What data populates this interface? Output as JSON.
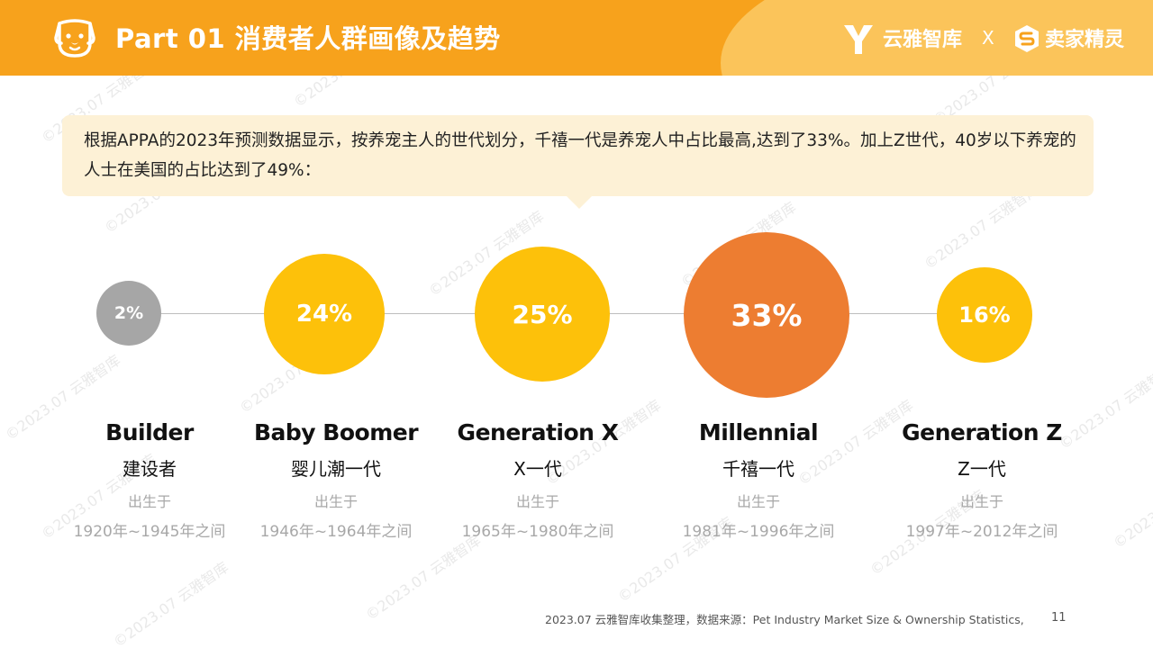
{
  "header": {
    "title": "Part 01 消费者人群画像及趋势",
    "brand_1": "云雅智库",
    "separator": "X",
    "brand_2": "卖家精灵",
    "colors": {
      "bar": "#f7a21c",
      "wave": "#fbc45a"
    }
  },
  "watermark": "©2023.07 云雅智库",
  "callout": {
    "text": "根据APPA的2023年预测数据显示，按养宠主人的世代划分，千禧一代是养宠人中占比最高,达到了33%。加上Z世代，40岁以下养宠的人士在美国的占比达到了49%："
  },
  "generations": [
    {
      "name": "Builder",
      "name_cn": "建设者",
      "born_label": "出生于",
      "range": "1920年~1945年之间",
      "share": "2%",
      "color": "#a6a6a6"
    },
    {
      "name": "Baby Boomer",
      "name_cn": "婴儿潮一代",
      "born_label": "出生于",
      "range": "1946年~1964年之间",
      "share": "24%",
      "color": "#fdc10a"
    },
    {
      "name": "Generation X",
      "name_cn": "X一代",
      "born_label": "出生于",
      "range": "1965年~1980年之间",
      "share": "25%",
      "color": "#fdc10a"
    },
    {
      "name": "Millennial",
      "name_cn": "千禧一代",
      "born_label": "出生于",
      "range": "1981年~1996年之间",
      "share": "33%",
      "color": "#ed7d31"
    },
    {
      "name": "Generation Z",
      "name_cn": "Z一代",
      "born_label": "出生于",
      "range": "1997年~2012年之间",
      "share": "16%",
      "color": "#fdc10a"
    }
  ],
  "footer": {
    "source": "2023.07 云雅智库收集整理，数据来源：Pet Industry Market Size & Ownership Statistics,",
    "page": "11"
  }
}
